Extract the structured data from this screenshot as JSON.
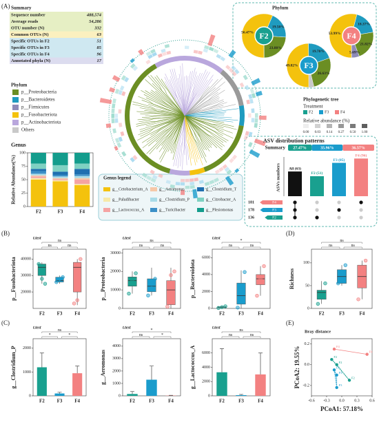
{
  "panel_labels": [
    "(A)",
    "(B)",
    "(C)",
    "(D)",
    "(E)"
  ],
  "summary": {
    "title": "Summary",
    "rows": [
      [
        "Sequence number",
        "488,574"
      ],
      [
        "Average reads",
        "54,286"
      ],
      [
        "OTU number (N)",
        "332"
      ],
      [
        "Common OTUs (N)",
        "63"
      ],
      [
        "Specific OTUs in F2",
        "51"
      ],
      [
        "Specific OTUs in F3",
        "85"
      ],
      [
        "Specific OTUs in F4",
        "96"
      ],
      [
        "Annotated phyla (N)",
        "17"
      ]
    ]
  },
  "phylum_legend": {
    "title": "Phylum",
    "items": [
      {
        "name": "p__Proteobacteria",
        "color": "#6b8e23"
      },
      {
        "name": "p__Bacteroidetes",
        "color": "#1f9bbf"
      },
      {
        "name": "p__Firmicutes",
        "color": "#8e8bb8"
      },
      {
        "name": "p__Fusobacteriota",
        "color": "#f4c20d"
      },
      {
        "name": "p__Actinobacteriota",
        "color": "#b9a7dd"
      },
      {
        "name": "Others",
        "color": "#c9c9c9"
      }
    ]
  },
  "phylum_pies_title": "Phylum",
  "genus_legend_title": "Genus legend",
  "tree_legend": {
    "title": "Phylogenetic tree",
    "treatment": "Treatment",
    "groups": [
      {
        "name": "F2",
        "color": "#19a08f"
      },
      {
        "name": "F3",
        "color": "#1a9ccc"
      },
      {
        "name": "F4",
        "color": "#f38181"
      }
    ],
    "abundance_title": "Relative abundance (%)",
    "abundance_ticks": [
      "0.00",
      "0.03",
      "0.14",
      "0.27",
      "0.50",
      "1.00"
    ]
  },
  "chart_data": [
    {
      "type": "donut",
      "center_label": "F2",
      "center_color": "#19a08f",
      "values": [
        56.47,
        19.5,
        23.88
      ],
      "value_labels": [
        "56.47%",
        "19.50%",
        "23.88%"
      ],
      "colors": [
        "#f4c20d",
        "#1f9bbf",
        "#6b8e23"
      ]
    },
    {
      "type": "donut",
      "center_label": "F3",
      "center_color": "#1a9ccc",
      "values": [
        49.82,
        19.7,
        26.63
      ],
      "value_labels": [
        "49.82%",
        "19.70%",
        "26.63%"
      ],
      "colors": [
        "#f4c20d",
        "#1f9bbf",
        "#6b8e23"
      ]
    },
    {
      "type": "donut",
      "center_label": "F4",
      "center_color": "#f38181",
      "values": [
        53.99,
        18.37,
        21.82,
        5.69
      ],
      "value_labels": [
        "53.99%",
        "18.37%",
        "21.82%",
        "5.69%"
      ],
      "colors": [
        "#f4c20d",
        "#1f9bbf",
        "#6b8e23",
        "#8e8bb8"
      ]
    },
    {
      "type": "stackedbar",
      "title": "Genus",
      "ylabel": "Relative Abundance(%)",
      "categories": [
        "F2",
        "F3",
        "F4"
      ],
      "ylim": [
        0,
        100
      ],
      "yticks": [
        0,
        25,
        50,
        75,
        100
      ],
      "series": [
        {
          "name": "g__Cetobacterium_A",
          "color": "#f4c20d",
          "values": [
            50,
            47,
            40
          ]
        },
        {
          "name": "g__Paludibacter",
          "color": "#f7e9a8",
          "values": [
            3,
            2,
            2
          ]
        },
        {
          "name": "g__Lactococcus_A",
          "color": "#f5a3a3",
          "values": [
            3,
            2,
            8
          ]
        },
        {
          "name": "g__Aeromonas",
          "color": "#f6c8a8",
          "values": [
            2,
            2,
            3
          ]
        },
        {
          "name": "g__Clostridium_P",
          "color": "#a9dbe8",
          "values": [
            3,
            3,
            4
          ]
        },
        {
          "name": "g__Turicibacter",
          "color": "#3c8fc7",
          "values": [
            5,
            3,
            3
          ]
        },
        {
          "name": "g__Clostridium_T",
          "color": "#1f6fb0",
          "values": [
            4,
            6,
            10
          ]
        },
        {
          "name": "g__Citrobacter_A",
          "color": "#7fd1c2",
          "values": [
            10,
            12,
            10
          ]
        },
        {
          "name": "g__Plesiomonas",
          "color": "#139c8c",
          "values": [
            20,
            23,
            20
          ]
        }
      ]
    },
    {
      "type": "upset",
      "title": "ASV distribution patterns",
      "summary_label": "Summary",
      "summary_values": [
        27.47,
        35.96,
        36.57
      ],
      "summary_labels": [
        "27.47%",
        "35.96%",
        "36.57%"
      ],
      "summary_colors": [
        "#19a08f",
        "#1a9ccc",
        "#f38181"
      ],
      "ylabel": "ASVs numbers",
      "ylim": [
        0,
        100
      ],
      "values": [
        63,
        51,
        85,
        96
      ],
      "value_labels": [
        "All (63)",
        "F2 (51)",
        "F3 (85)",
        "F4 (96)"
      ],
      "colors": [
        "#111111",
        "#19a08f",
        "#1a9ccc",
        "#f38181"
      ],
      "set_names": [
        "F4",
        "F3",
        "F2"
      ],
      "set_values": [
        181,
        178,
        136
      ],
      "set_colors": [
        "#f38181",
        "#1a9ccc",
        "#19a08f"
      ]
    },
    {
      "type": "box",
      "title": "t.test",
      "ylabel": "p__Fusobacteriota",
      "categories": [
        "F2",
        "F3",
        "F4"
      ],
      "colors": [
        "#19a08f",
        "#1a9ccc",
        "#f38181"
      ],
      "ylim": [
        10000,
        46000
      ],
      "yticks": [
        20000,
        30000,
        40000
      ],
      "boxes": [
        [
          25000,
          30000,
          35000,
          37000,
          38000
        ],
        [
          25000,
          26000,
          27000,
          29000,
          30000
        ],
        [
          12000,
          20000,
          35000,
          38000,
          40000
        ]
      ],
      "points": [
        [
          37000,
          28000,
          25000
        ],
        [
          26000,
          28000,
          29000
        ],
        [
          13000,
          15000,
          40000
        ]
      ],
      "sig": [
        "ns",
        "ns",
        "ns"
      ]
    },
    {
      "type": "box",
      "title": "t.test",
      "ylabel": "p__Proteobacteria",
      "categories": [
        "F2",
        "F3",
        "F4"
      ],
      "colors": [
        "#19a08f",
        "#1a9ccc",
        "#f38181"
      ],
      "ylim": [
        0,
        32000
      ],
      "yticks": [
        0,
        10000,
        20000,
        30000
      ],
      "boxes": [
        [
          8000,
          12000,
          15000,
          17000,
          20000
        ],
        [
          7000,
          9000,
          12000,
          16000,
          22000
        ],
        [
          0,
          2000,
          10000,
          15000,
          22000
        ]
      ],
      "points": [
        [
          8000,
          15000,
          19000
        ],
        [
          7000,
          11000,
          16000
        ],
        [
          1000,
          18000,
          20000
        ]
      ],
      "sig": [
        "ns",
        "ns",
        "ns"
      ]
    },
    {
      "type": "box",
      "title": "t.test",
      "ylabel": "p__Bacteroidota",
      "categories": [
        "F2",
        "F3",
        "F4"
      ],
      "colors": [
        "#19a08f",
        "#1a9ccc",
        "#f38181"
      ],
      "ylim": [
        0,
        7000
      ],
      "yticks": [
        0,
        2000,
        4000,
        6000
      ],
      "boxes": [
        [
          50,
          100,
          150,
          200,
          250
        ],
        [
          0,
          500,
          1500,
          3000,
          4500
        ],
        [
          1500,
          2800,
          3500,
          4000,
          5000
        ]
      ],
      "points": [
        [
          50,
          150,
          250
        ],
        [
          100,
          2500,
          4300
        ],
        [
          1500,
          3500,
          5000
        ]
      ],
      "sig": [
        "ns",
        "ns",
        "*"
      ]
    },
    {
      "type": "box",
      "ylabel": "Richness",
      "categories": [
        "F2",
        "F3",
        "F4"
      ],
      "colors": [
        "#19a08f",
        "#1a9ccc",
        "#f38181"
      ],
      "ylim": [
        0,
        130
      ],
      "yticks": [
        0,
        50,
        100
      ],
      "boxes": [
        [
          10,
          20,
          35,
          40,
          60
        ],
        [
          50,
          55,
          70,
          85,
          95
        ],
        [
          20,
          45,
          70,
          95,
          105
        ]
      ],
      "points": [
        [
          10,
          30,
          55
        ],
        [
          55,
          80,
          95
        ],
        [
          20,
          80,
          105
        ]
      ],
      "sig": [
        "ns",
        "ns",
        "ns"
      ]
    },
    {
      "type": "errorbar",
      "title": "t.test",
      "ylabel": "g__Clostridium_P",
      "categories": [
        "F2",
        "F3",
        "F4"
      ],
      "colors": [
        "#19a08f",
        "#1a9ccc",
        "#f38181"
      ],
      "ylim": [
        0,
        2400
      ],
      "yticks": [
        0,
        1000,
        2000
      ],
      "values": [
        1200,
        100,
        950
      ],
      "errors": [
        600,
        50,
        300
      ],
      "sig": [
        "*",
        "*",
        "ns"
      ]
    },
    {
      "type": "errorbar",
      "title": "t.test",
      "ylabel": "g__Aeromonas",
      "categories": [
        "F2",
        "F3",
        "F4"
      ],
      "colors": [
        "#19a08f",
        "#1a9ccc",
        "#f38181"
      ],
      "ylim": [
        0,
        4600
      ],
      "yticks": [
        0,
        1000,
        2000,
        3000,
        4000
      ],
      "values": [
        150,
        1300,
        20
      ],
      "errors": [
        200,
        1100,
        20
      ],
      "sig": [
        "ns",
        "*",
        "*"
      ]
    },
    {
      "type": "errorbar",
      "title": "t.test",
      "ylabel": "g__Lactococcus_A",
      "categories": [
        "F2",
        "F3",
        "F4"
      ],
      "colors": [
        "#19a08f",
        "#1a9ccc",
        "#f38181"
      ],
      "ylim": [
        0,
        8000
      ],
      "yticks": [
        0,
        2000,
        4000,
        6000
      ],
      "values": [
        3300,
        100,
        3000
      ],
      "errors": [
        3300,
        100,
        3000
      ],
      "sig": [
        "ns",
        "ns",
        "ns"
      ]
    },
    {
      "type": "scatter",
      "title": "Bray distance",
      "xlabel": "PCoA1: 57.18%",
      "ylabel": "PCoA2: 19.55%",
      "xlim": [
        -0.6,
        0.6
      ],
      "xticks": [
        -0.6,
        -0.3,
        {
          "value": 0,
          "label": "0.0"
        },
        0.3,
        0.6
      ],
      "ylim": [
        -0.3,
        0.25
      ],
      "yticks": [
        -0.2,
        {
          "value": 0,
          "label": "0.0"
        },
        0.2
      ],
      "series": [
        {
          "name": "F2",
          "color": "#19a08f",
          "x": [
            -0.2,
            0.15,
            -0.1
          ],
          "y": [
            0.05,
            -0.15,
            0.0
          ]
        },
        {
          "name": "F3",
          "color": "#1a9ccc",
          "x": [
            -0.15,
            -0.1,
            -0.1
          ],
          "y": [
            -0.05,
            -0.1,
            -0.22
          ]
        },
        {
          "name": "F4",
          "color": "#f38181",
          "x": [
            -0.15,
            0.5
          ],
          "y": [
            0.15,
            0.1
          ]
        }
      ]
    }
  ]
}
